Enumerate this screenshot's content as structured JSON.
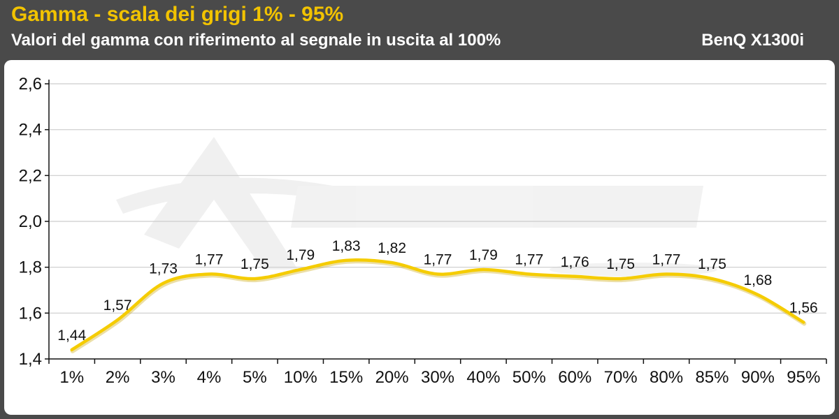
{
  "header": {
    "title": "Gamma - scala dei grigi 1% - 95%",
    "subtitle": "Valori del gamma con riferimento al segnale in uscita al 100%",
    "product": "BenQ X1300i"
  },
  "colors": {
    "title": "#f2c300",
    "line": "#f5cc00",
    "background": "#4a4a4a",
    "grid": "#cccccc"
  },
  "chart_data": {
    "type": "line",
    "title": "Gamma - scala dei grigi 1% - 95%",
    "subtitle": "Valori del gamma con riferimento al segnale in uscita al 100%",
    "categories": [
      "1%",
      "2%",
      "3%",
      "4%",
      "5%",
      "10%",
      "15%",
      "20%",
      "30%",
      "40%",
      "50%",
      "60%",
      "70%",
      "80%",
      "85%",
      "90%",
      "95%"
    ],
    "series": [
      {
        "values": [
          1.44,
          1.57,
          1.73,
          1.77,
          1.75,
          1.79,
          1.83,
          1.82,
          1.77,
          1.79,
          1.77,
          1.76,
          1.75,
          1.77,
          1.75,
          1.68,
          1.56
        ],
        "labels": [
          "1,44",
          "1,57",
          "1,73",
          "1,77",
          "1,75",
          "1,79",
          "1,83",
          "1,82",
          "1,77",
          "1,79",
          "1,77",
          "1,76",
          "1,75",
          "1,77",
          "1,75",
          "1,68",
          "1,56"
        ]
      }
    ],
    "yticks": [
      1.4,
      1.6,
      1.8,
      2.0,
      2.2,
      2.4,
      2.6
    ],
    "ytick_labels": [
      "1,4",
      "1,6",
      "1,8",
      "2,0",
      "2,2",
      "2,4",
      "2,6"
    ],
    "ylim": [
      1.4,
      2.6
    ],
    "grid": true,
    "legend": "none"
  }
}
